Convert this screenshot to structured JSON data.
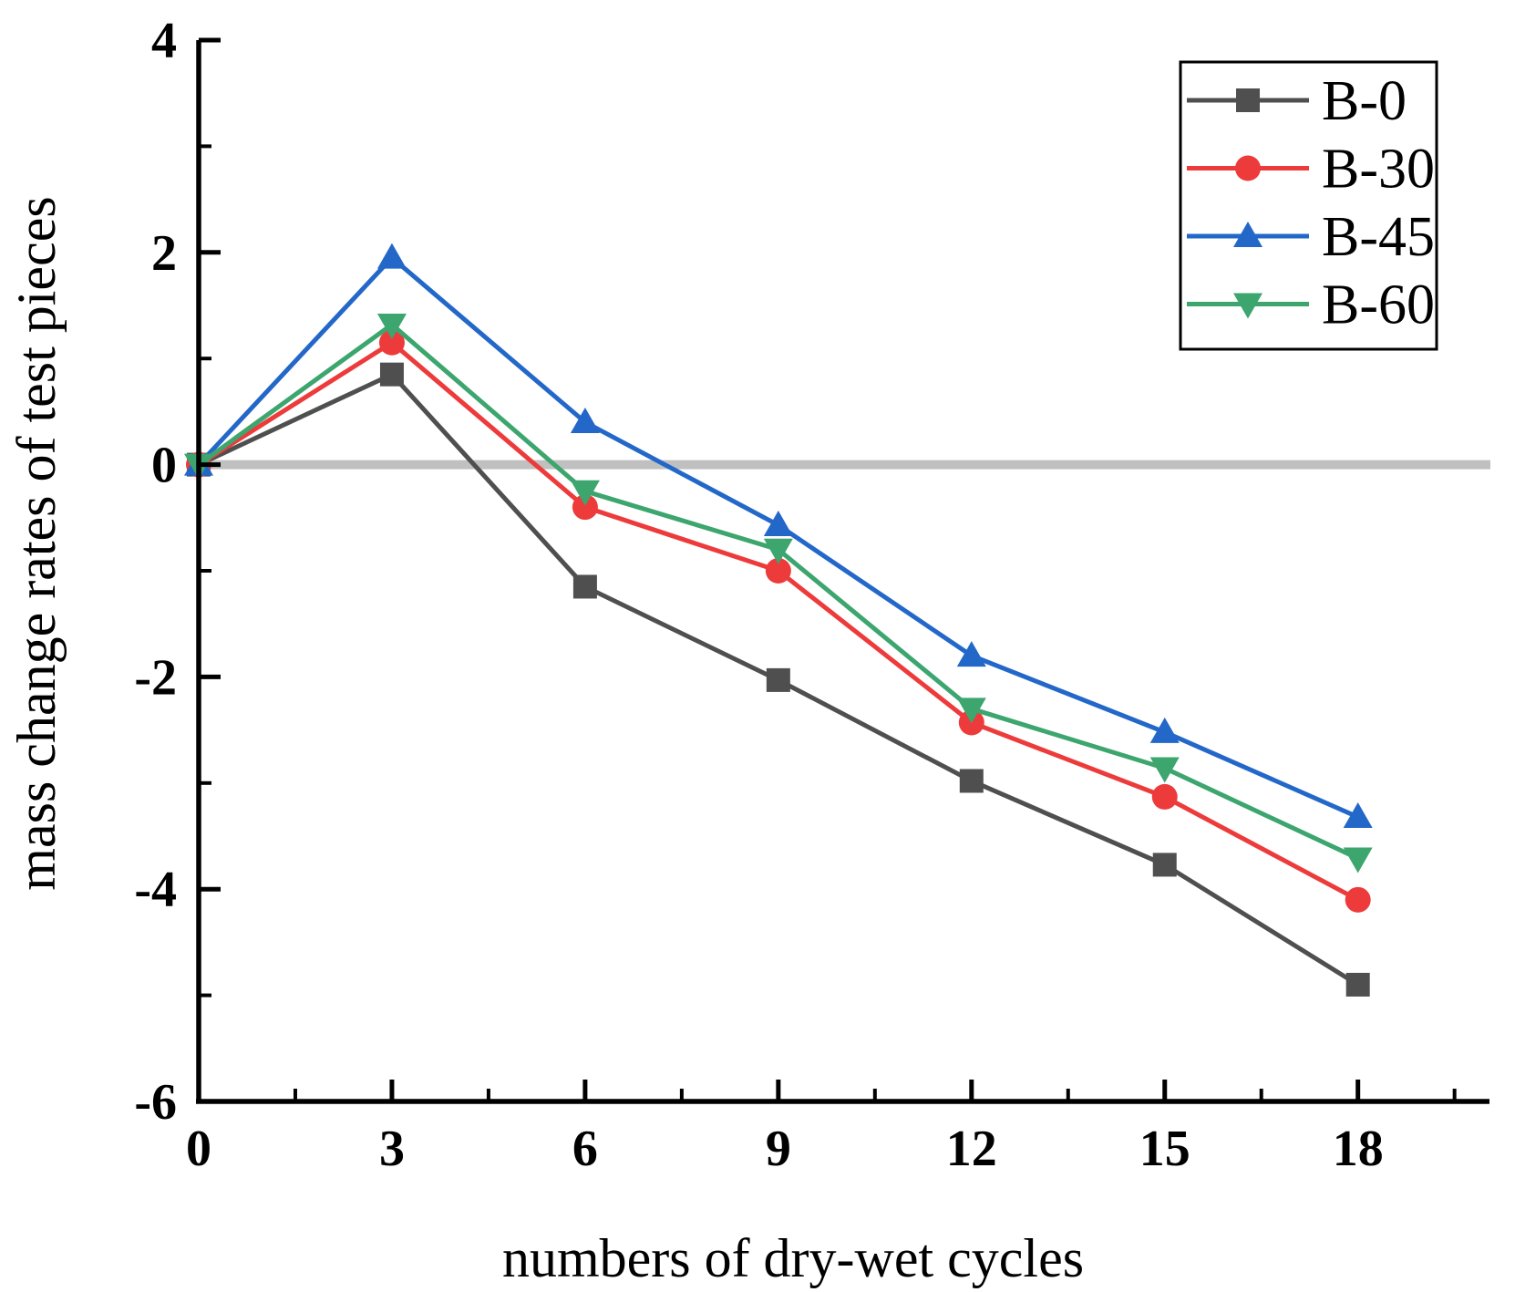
{
  "figure": {
    "background": "#ffffff",
    "axis_color": "#000000",
    "zero_line_color": "#c0c0c0"
  },
  "chart_data": {
    "type": "line",
    "title": "",
    "xlabel": "numbers of dry-wet cycles",
    "ylabel": "mass change rates of test pieces",
    "xlim": [
      0,
      20
    ],
    "ylim": [
      -6,
      4
    ],
    "x_ticks": [
      0,
      3,
      6,
      9,
      12,
      15,
      18
    ],
    "y_ticks": [
      4,
      2,
      0,
      -2,
      -4,
      -6
    ],
    "x_minor_ticks": [
      1.5,
      4.5,
      7.5,
      10.5,
      13.5,
      16.5,
      19.5
    ],
    "y_minor_ticks": [
      3,
      1,
      -1,
      -3,
      -5
    ],
    "grid": false,
    "zero_line": {
      "y": 0,
      "color": "#c0c0c0"
    },
    "legend_position": "top-right",
    "x": [
      0,
      3,
      6,
      9,
      12,
      15,
      18
    ],
    "series": [
      {
        "name": "B-0",
        "color": "#4f4f4f",
        "marker": "square",
        "values": [
          0,
          0.85,
          -1.15,
          -2.03,
          -2.98,
          -3.77,
          -4.9
        ]
      },
      {
        "name": "B-30",
        "color": "#ed3b3b",
        "marker": "circle",
        "values": [
          0,
          1.15,
          -0.4,
          -1.0,
          -2.43,
          -3.13,
          -4.1
        ]
      },
      {
        "name": "B-45",
        "color": "#2368c9",
        "marker": "triangle-up",
        "values": [
          0,
          1.95,
          0.4,
          -0.57,
          -1.8,
          -2.52,
          -3.32
        ]
      },
      {
        "name": "B-60",
        "color": "#3da56e",
        "marker": "triangle-down",
        "values": [
          0,
          1.32,
          -0.25,
          -0.8,
          -2.3,
          -2.86,
          -3.71
        ]
      }
    ]
  }
}
